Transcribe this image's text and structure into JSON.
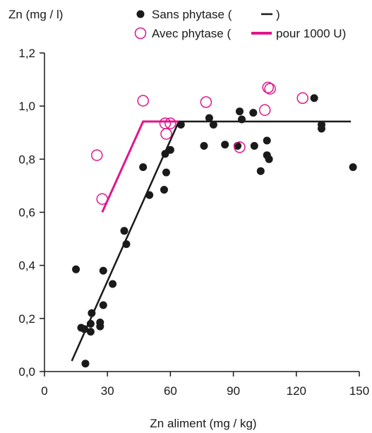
{
  "chart_data": {
    "type": "scatter",
    "title": "",
    "ylabel": "Zn (mg / l)",
    "xlabel": "Zn aliment (mg / kg)",
    "xlim": [
      0,
      150
    ],
    "ylim": [
      0,
      1.2
    ],
    "x_ticks": [
      0,
      30,
      60,
      90,
      120,
      150
    ],
    "x_tick_labels": [
      "0",
      "30",
      "60",
      "90",
      "120",
      "150"
    ],
    "y_ticks": [
      0,
      0.2,
      0.4,
      0.6,
      0.8,
      1.0,
      1.2
    ],
    "y_tick_labels": [
      "0,0",
      "0,2",
      "0,4",
      "0,6",
      "0,8",
      "1,0",
      "1,2"
    ],
    "grid": false,
    "legend_position": "top",
    "legend": {
      "sans_prefix": "Sans phytase (",
      "sans_suffix": ")",
      "avec_prefix": "Avec phytase (",
      "avec_suffix": "pour 1000 U)"
    },
    "colors": {
      "sans": "#1a1a1a",
      "avec": "#e0168c"
    },
    "series": [
      {
        "name": "Sans phytase",
        "marker": "filled-circle",
        "points": [
          [
            15,
            0.385
          ],
          [
            17.5,
            0.165
          ],
          [
            19,
            0.16
          ],
          [
            19.5,
            0.03
          ],
          [
            22,
            0.15
          ],
          [
            22,
            0.18
          ],
          [
            22.5,
            0.22
          ],
          [
            26.5,
            0.17
          ],
          [
            26.5,
            0.185
          ],
          [
            28,
            0.25
          ],
          [
            28,
            0.38
          ],
          [
            32.5,
            0.33
          ],
          [
            38,
            0.53
          ],
          [
            39,
            0.48
          ],
          [
            47,
            0.77
          ],
          [
            50,
            0.665
          ],
          [
            57,
            0.685
          ],
          [
            57.5,
            0.82
          ],
          [
            58,
            0.75
          ],
          [
            60,
            0.835
          ],
          [
            65,
            0.93
          ],
          [
            76,
            0.85
          ],
          [
            78.5,
            0.955
          ],
          [
            80.5,
            0.93
          ],
          [
            86,
            0.855
          ],
          [
            92,
            0.85
          ],
          [
            93,
            0.98
          ],
          [
            94,
            0.95
          ],
          [
            99.5,
            0.975
          ],
          [
            100,
            0.85
          ],
          [
            103,
            0.755
          ],
          [
            106,
            0.815
          ],
          [
            106,
            0.87
          ],
          [
            107,
            0.8
          ],
          [
            128.5,
            1.03
          ],
          [
            132,
            0.915
          ],
          [
            132,
            0.93
          ],
          [
            147,
            0.77
          ]
        ]
      },
      {
        "name": "Avec phytase",
        "marker": "open-circle",
        "points": [
          [
            25,
            0.815
          ],
          [
            27.5,
            0.65
          ],
          [
            47,
            1.02
          ],
          [
            57.5,
            0.935
          ],
          [
            58,
            0.895
          ],
          [
            60,
            0.935
          ],
          [
            77,
            1.015
          ],
          [
            93,
            0.845
          ],
          [
            105,
            0.985
          ],
          [
            106.5,
            1.07
          ],
          [
            107.5,
            1.065
          ],
          [
            123,
            1.03
          ]
        ]
      }
    ],
    "fit_lines": [
      {
        "series": "Sans phytase",
        "points": [
          [
            13,
            0.04
          ],
          [
            64,
            0.942
          ],
          [
            146,
            0.942
          ]
        ]
      },
      {
        "series": "Avec phytase",
        "points": [
          [
            27.5,
            0.6
          ],
          [
            47,
            0.942
          ],
          [
            64,
            0.942
          ]
        ]
      }
    ]
  }
}
